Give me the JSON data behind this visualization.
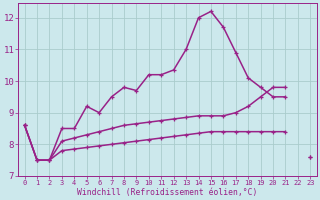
{
  "x": [
    0,
    1,
    2,
    3,
    4,
    5,
    6,
    7,
    8,
    9,
    10,
    11,
    12,
    13,
    14,
    15,
    16,
    17,
    18,
    19,
    20,
    21,
    22,
    23
  ],
  "y_main": [
    8.6,
    7.5,
    7.5,
    8.5,
    8.5,
    9.2,
    9.0,
    9.5,
    9.8,
    9.7,
    10.2,
    10.2,
    10.35,
    11.0,
    12.0,
    12.2,
    11.7,
    10.9,
    10.1,
    9.8,
    9.5,
    9.5,
    null,
    7.6
  ],
  "y_mid": [
    8.6,
    7.5,
    7.5,
    8.1,
    8.2,
    8.3,
    8.4,
    8.5,
    8.6,
    8.65,
    8.7,
    8.75,
    8.8,
    8.85,
    8.9,
    8.9,
    8.9,
    9.0,
    9.2,
    9.5,
    9.8,
    9.8,
    null,
    7.6
  ],
  "y_flat": [
    8.6,
    7.5,
    7.5,
    7.8,
    7.85,
    7.9,
    7.95,
    8.0,
    8.05,
    8.1,
    8.15,
    8.2,
    8.25,
    8.3,
    8.35,
    8.4,
    8.4,
    8.4,
    8.4,
    8.4,
    8.4,
    8.4,
    null,
    null
  ],
  "background_color": "#cce8ec",
  "grid_color": "#aacccc",
  "line_color": "#992288",
  "xlabel": "Windchill (Refroidissement éolien,°C)",
  "ylabel_ticks": [
    7,
    8,
    9,
    10,
    11,
    12
  ],
  "xtick_labels": [
    "0",
    "1",
    "2",
    "3",
    "4",
    "5",
    "6",
    "7",
    "8",
    "9",
    "10",
    "11",
    "12",
    "13",
    "14",
    "15",
    "16",
    "17",
    "18",
    "19",
    "20",
    "21",
    "22",
    "23"
  ],
  "xlim": [
    -0.5,
    23.5
  ],
  "ylim": [
    7.0,
    12.45
  ]
}
